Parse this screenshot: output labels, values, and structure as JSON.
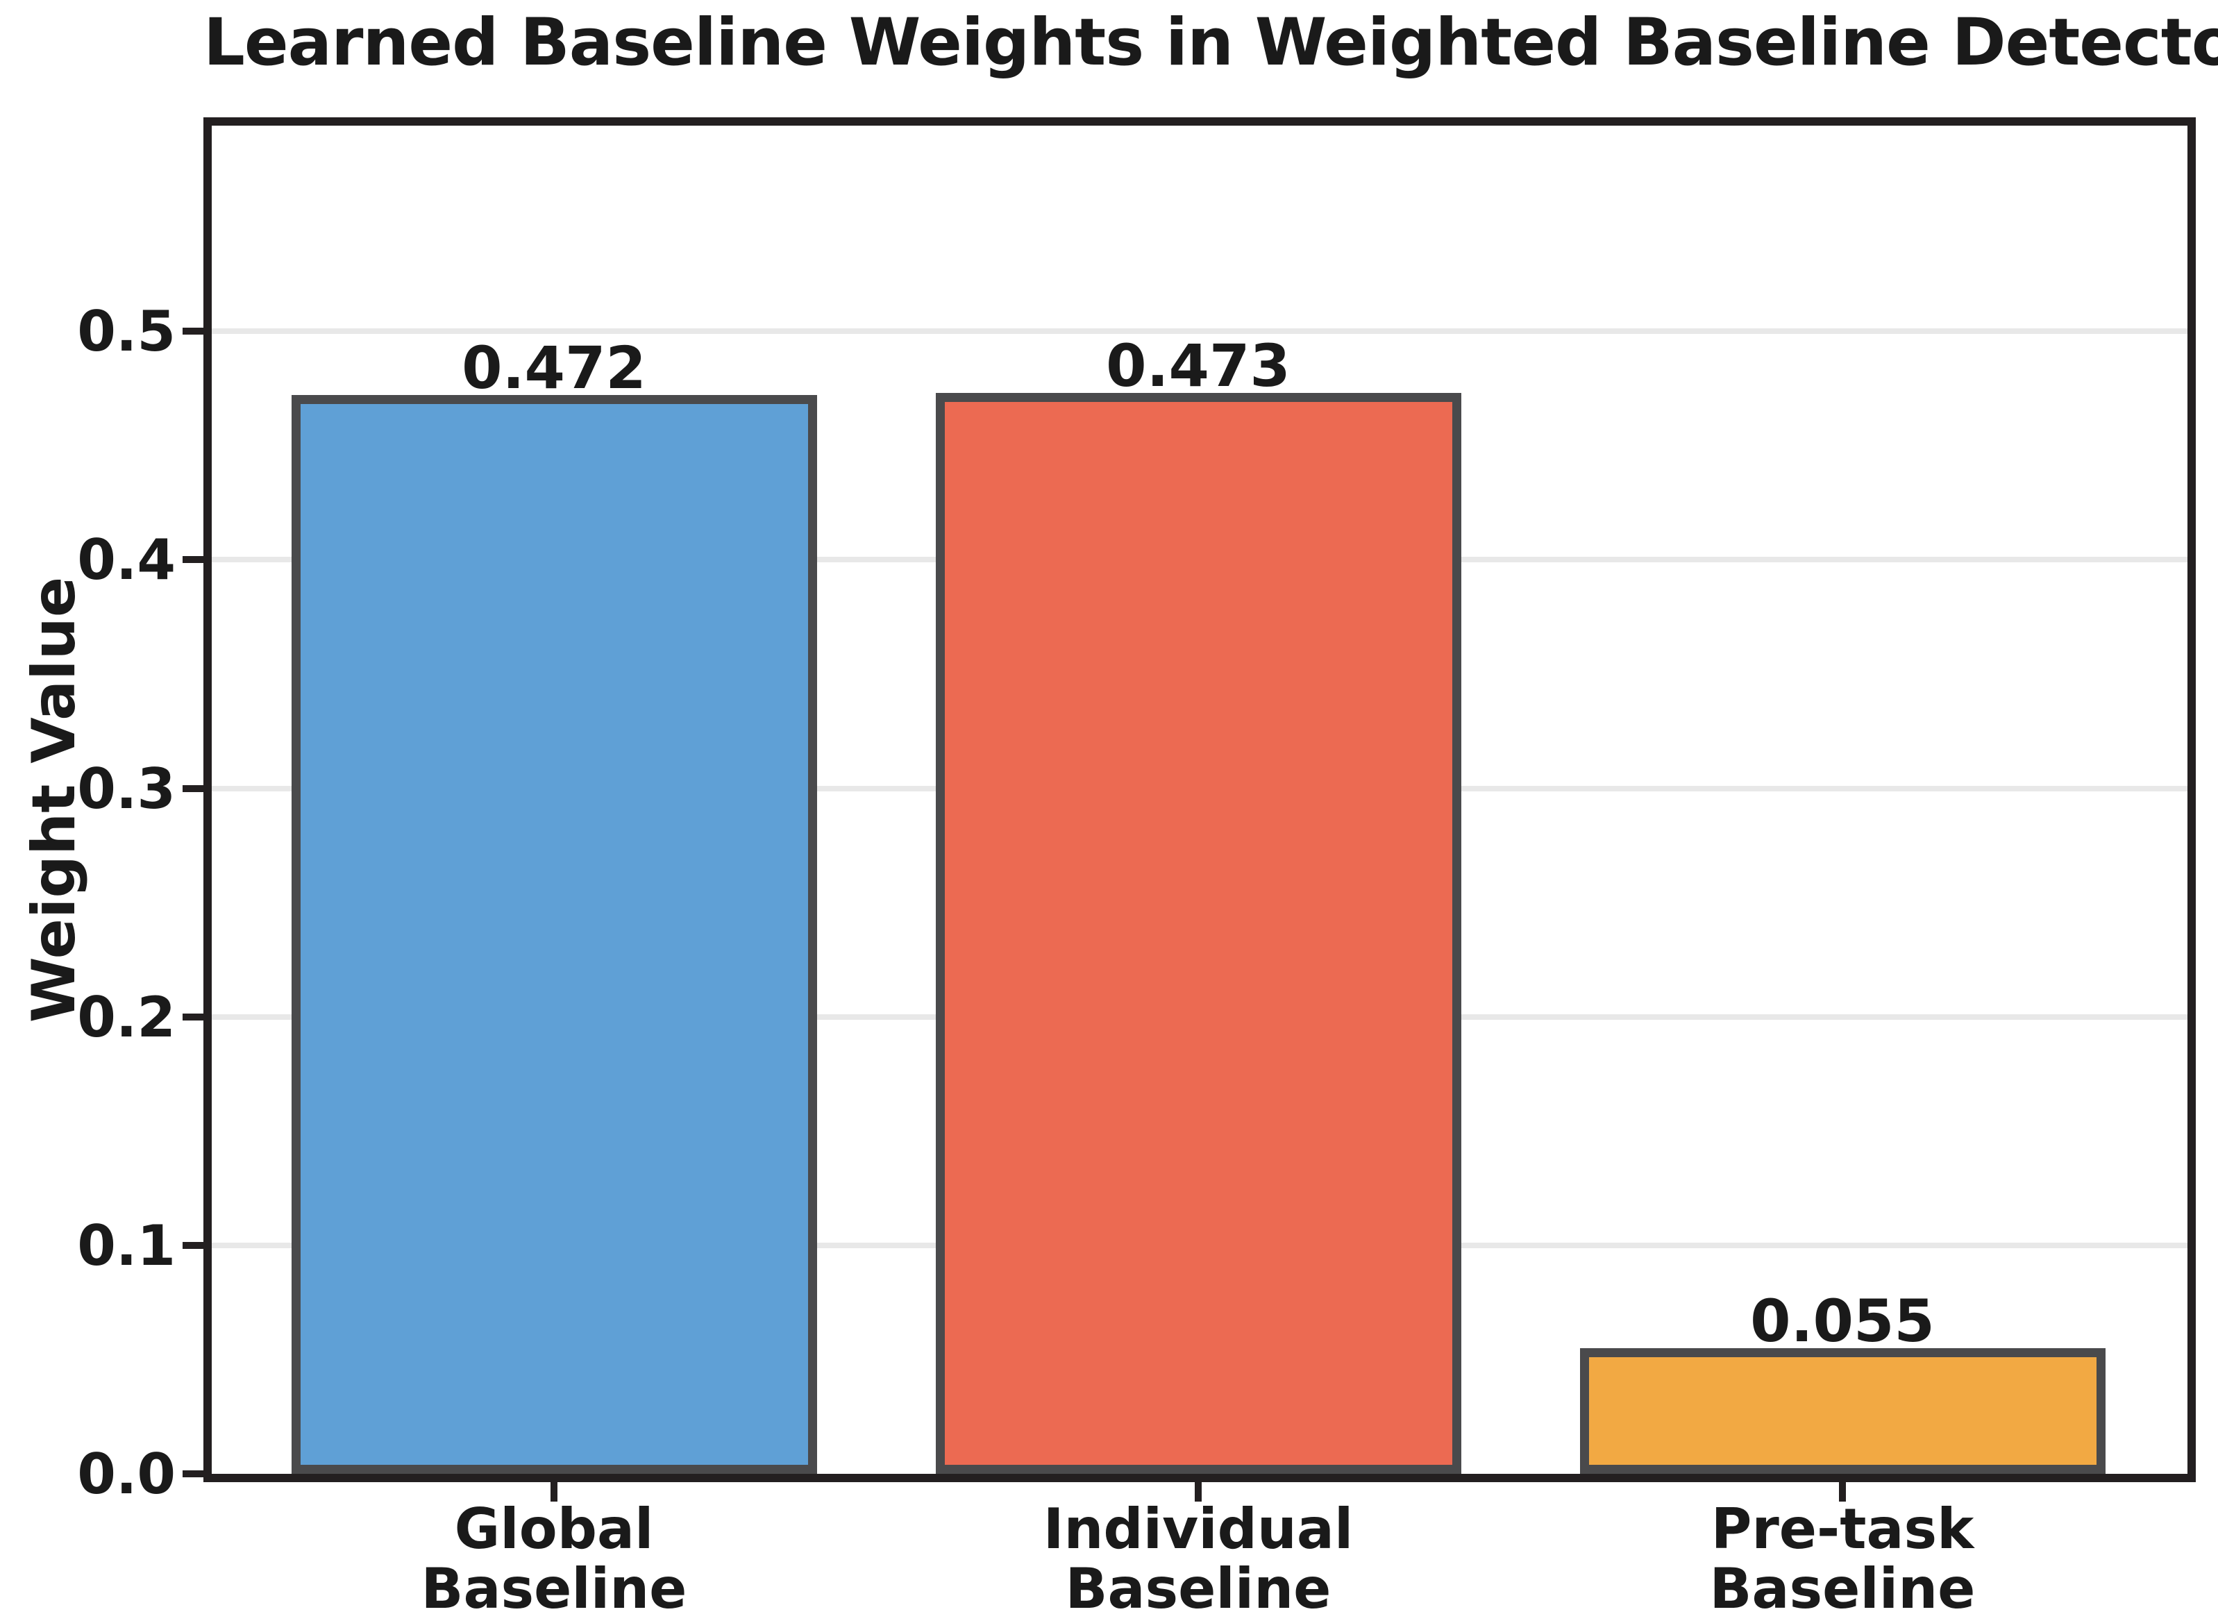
{
  "title": "Learned Baseline Weights in Weighted Baseline Detector",
  "text_color": "#1a1a1a",
  "spine_color": "#231F20",
  "gridline_color": "#E8E8E8",
  "chart_data": {
    "type": "bar",
    "title": "Learned Baseline Weights in Weighted Baseline Detector",
    "xlabel": "",
    "ylabel": "Weight Value",
    "categories": [
      "Global\nBaseline",
      "Individual\nBaseline",
      "Pre-task\nBaseline"
    ],
    "values": [
      0.472,
      0.473,
      0.055
    ],
    "value_labels": [
      "0.472",
      "0.473",
      "0.055"
    ],
    "bar_colors": [
      "#5FA0D6",
      "#EC6A52",
      "#F2A943"
    ],
    "bar_edge_color": "#4A4A4C",
    "ylim": [
      0,
      0.59
    ],
    "yticks": [
      0.0,
      0.1,
      0.2,
      0.3,
      0.4,
      0.5
    ],
    "ytick_labels": [
      "0.0",
      "0.1",
      "0.2",
      "0.3",
      "0.4",
      "0.5"
    ],
    "grid": "horizontal-major",
    "legend": "none"
  }
}
